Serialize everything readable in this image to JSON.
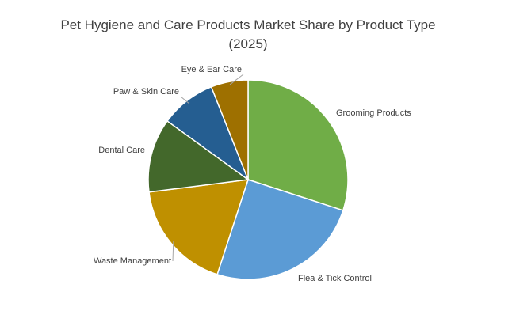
{
  "chart_data": {
    "type": "pie",
    "title": "Pet Hygiene and Care Products Market Share by Product Type (2025)",
    "categories": [
      "Grooming Products",
      "Flea & Tick Control",
      "Waste Management",
      "Dental Care",
      "Paw & Skin Care",
      "Eye & Ear Care"
    ],
    "values": [
      30,
      25,
      18,
      12,
      9,
      6
    ],
    "colors": [
      "#70ad47",
      "#5b9bd5",
      "#bf9000",
      "#43682b",
      "#255e91",
      "#9e7000"
    ]
  }
}
